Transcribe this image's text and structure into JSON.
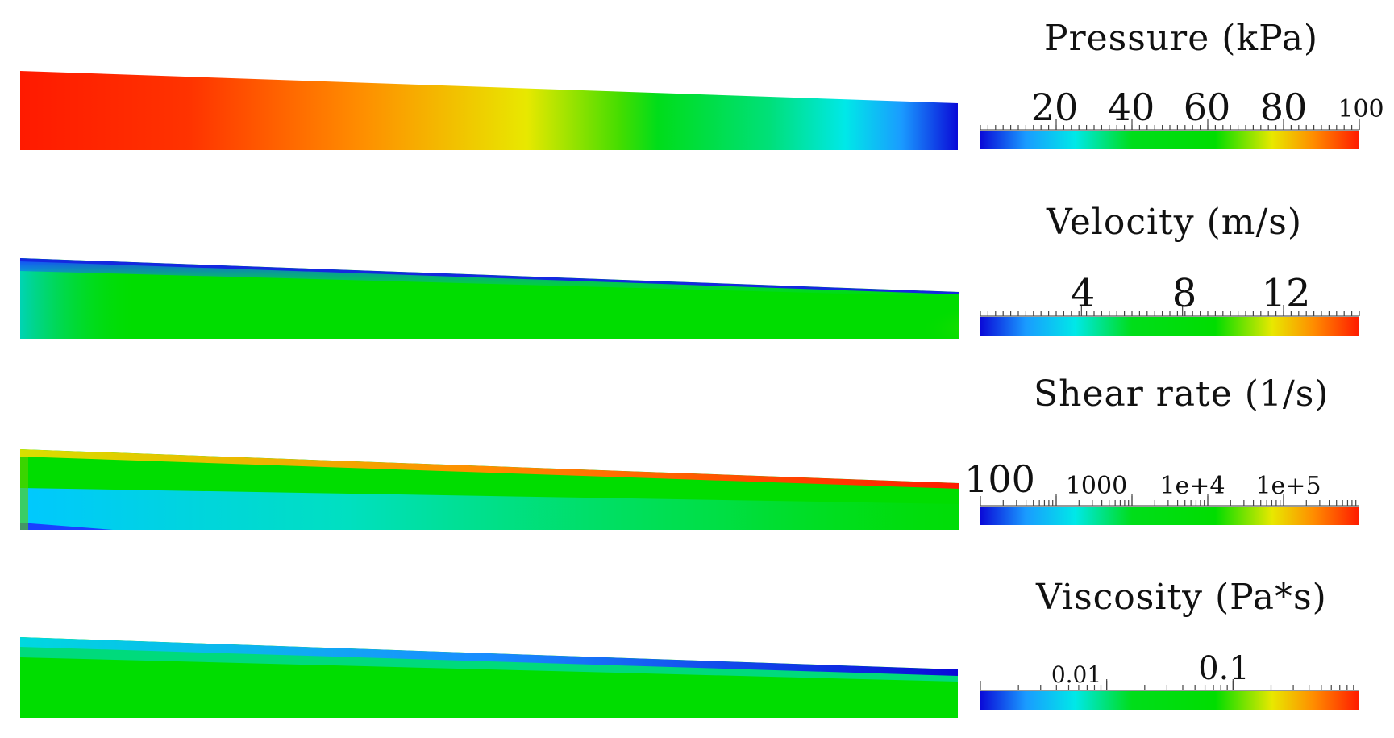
{
  "colormap": [
    "#0a0ad8",
    "#1a9bff",
    "#00e8e8",
    "#00dd1a",
    "#00dd00",
    "#e8e800",
    "#ff8c00",
    "#ff1a00"
  ],
  "panels": [
    {
      "id": "pressure",
      "legend_title": "Pressure (kPa)",
      "scale": "linear",
      "range": [
        0,
        100
      ],
      "tick_labels": [
        "20",
        "40",
        "60",
        "80",
        "100"
      ],
      "tick_values": [
        20,
        40,
        60,
        80,
        100
      ],
      "field_description": "uniform along channel height, high (red) at inlet falling to low (blue) at outlet"
    },
    {
      "id": "velocity",
      "legend_title": "Velocity (m/s)",
      "scale": "linear",
      "range": [
        0,
        15
      ],
      "tick_labels": [
        "4",
        "8",
        "12"
      ],
      "tick_values": [
        4,
        8,
        12
      ]
    },
    {
      "id": "shear_rate",
      "legend_title": "Shear rate (1/s)",
      "scale": "log",
      "range": [
        10,
        1000000
      ],
      "tick_labels": [
        "100",
        "1000",
        "1e+4",
        "1e+5"
      ],
      "tick_values": [
        100,
        1000,
        10000,
        100000
      ]
    },
    {
      "id": "viscosity",
      "legend_title": "Viscosity (Pa*s)",
      "scale": "log",
      "range": [
        0.001,
        1
      ],
      "tick_labels": [
        "0.01",
        "0.1"
      ],
      "tick_values": [
        0.01,
        0.1
      ]
    }
  ]
}
